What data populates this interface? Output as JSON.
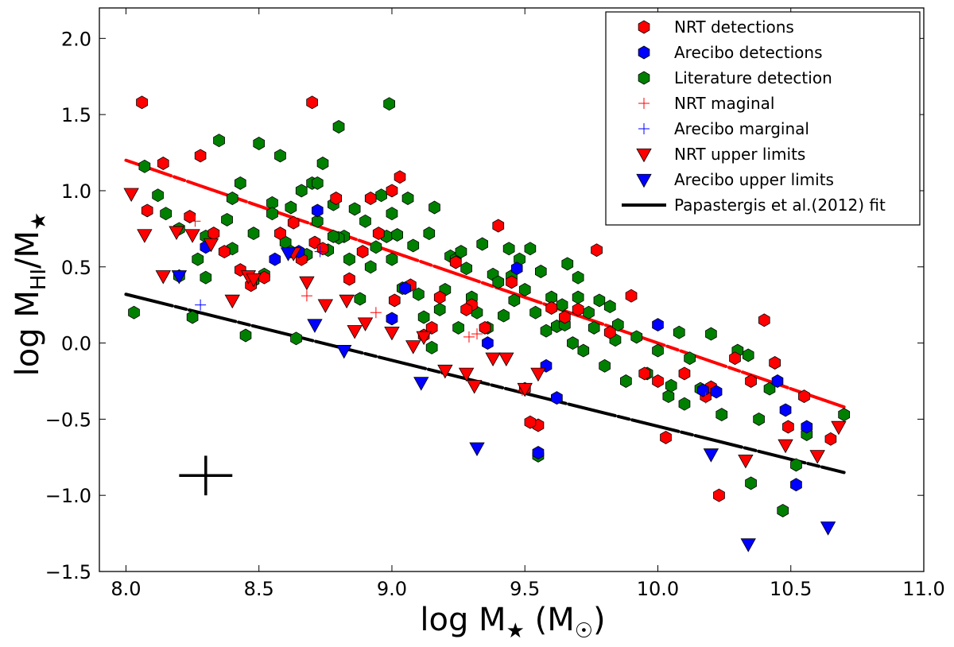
{
  "chart_data": {
    "type": "scatter",
    "title": "",
    "xlabel": {
      "main": "log M",
      "sub": "★",
      "unit_open": " (M",
      "unit_sub": "☉",
      "unit_close": ")"
    },
    "ylabel": {
      "main": "log M",
      "sub": "HI",
      "slash": "/M",
      "sub2": "★"
    },
    "xlim": [
      7.9,
      11.0
    ],
    "ylim": [
      -1.5,
      2.2
    ],
    "x_ticks": [
      "8.0",
      "8.5",
      "9.0",
      "9.5",
      "10.0",
      "10.5",
      "11.0"
    ],
    "y_ticks": [
      "2.0",
      "1.5",
      "1.0",
      "0.5",
      "0.0",
      "−0.5",
      "−1.0",
      "−1.5"
    ],
    "x_tick_values": [
      8.0,
      8.5,
      9.0,
      9.5,
      10.0,
      10.5,
      11.0
    ],
    "y_tick_values": [
      2.0,
      1.5,
      1.0,
      0.5,
      0.0,
      -0.5,
      -1.0,
      -1.5
    ],
    "grid": false,
    "legend_position": "top-right",
    "colors": {
      "nrt": "#ff0000",
      "arecibo": "#0000ff",
      "literature": "#008000",
      "fit_black": "#000000",
      "fit_red": "#ff0000"
    },
    "error_bar": {
      "x": 8.3,
      "y": -0.87,
      "dx": 0.1,
      "dy": 0.13
    },
    "legend": [
      {
        "label": "NRT detections",
        "marker": "hexagon",
        "color": "#ff0000"
      },
      {
        "label": "Arecibo detections",
        "marker": "hexagon",
        "color": "#0000ff"
      },
      {
        "label": "Literature detection",
        "marker": "hexagon",
        "color": "#008000"
      },
      {
        "label": "NRT maginal",
        "marker": "plus",
        "color": "#ff0000"
      },
      {
        "label": "Arecibo marginal",
        "marker": "plus",
        "color": "#0000ff"
      },
      {
        "label": "NRT upper limits",
        "marker": "triangle-down",
        "color": "#ff0000"
      },
      {
        "label": "Arecibo upper limits",
        "marker": "triangle-down",
        "color": "#0000ff"
      },
      {
        "label": "Papastergis et al.(2012) fit",
        "marker": "line",
        "color": "#000000"
      }
    ],
    "fits": [
      {
        "name": "Papastergis et al.(2012) fit",
        "color": "#000000",
        "x": [
          8.0,
          10.7
        ],
        "y": [
          0.32,
          -0.85
        ]
      },
      {
        "name": "",
        "color": "#ff0000",
        "x": [
          8.0,
          10.7
        ],
        "y": [
          1.2,
          -0.42
        ]
      }
    ],
    "series": [
      {
        "name": "Literature detection",
        "marker": "hexagon",
        "color": "#008000",
        "x": [
          8.03,
          8.07,
          8.12,
          8.15,
          8.2,
          8.25,
          8.27,
          8.3,
          8.35,
          8.38,
          8.4,
          8.43,
          8.45,
          8.48,
          8.5,
          8.52,
          8.55,
          8.58,
          8.6,
          8.62,
          8.64,
          8.66,
          8.68,
          8.7,
          8.72,
          8.74,
          8.76,
          8.78,
          8.8,
          8.82,
          8.84,
          8.86,
          8.88,
          8.9,
          8.92,
          8.94,
          8.96,
          8.98,
          9.0,
          9.02,
          9.04,
          9.06,
          9.08,
          9.1,
          9.12,
          9.14,
          9.16,
          9.18,
          9.2,
          9.22,
          9.24,
          9.26,
          9.28,
          9.3,
          9.32,
          9.34,
          9.36,
          9.38,
          9.4,
          9.42,
          9.44,
          9.46,
          9.48,
          9.5,
          9.52,
          9.54,
          9.56,
          9.58,
          9.6,
          9.62,
          9.64,
          9.66,
          9.68,
          9.7,
          9.72,
          9.74,
          9.76,
          9.78,
          9.8,
          9.82,
          9.84,
          9.88,
          9.92,
          9.96,
          10.0,
          10.04,
          10.08,
          10.12,
          10.16,
          10.2,
          10.24,
          10.3,
          10.34,
          10.38,
          10.42,
          10.47,
          10.52,
          10.56,
          10.7,
          8.4,
          8.55,
          8.99,
          8.8,
          9.55,
          10.1,
          8.48,
          8.72,
          9.0,
          9.45,
          9.65,
          8.3,
          8.62,
          9.25,
          9.85,
          10.05,
          8.2,
          8.78,
          9.15,
          9.7,
          10.35
        ],
        "y": [
          0.2,
          1.16,
          0.97,
          0.85,
          0.75,
          0.17,
          0.55,
          0.7,
          1.33,
          0.81,
          0.95,
          1.05,
          0.05,
          0.72,
          1.31,
          0.45,
          0.92,
          1.23,
          0.66,
          0.89,
          0.03,
          1.0,
          0.58,
          1.05,
          0.8,
          1.18,
          0.61,
          0.91,
          1.42,
          0.7,
          0.55,
          0.88,
          0.29,
          0.8,
          0.5,
          0.63,
          0.97,
          0.7,
          0.85,
          0.71,
          0.36,
          0.95,
          0.64,
          0.32,
          0.17,
          0.72,
          0.89,
          0.22,
          0.35,
          0.57,
          0.55,
          0.6,
          0.49,
          0.3,
          0.2,
          0.65,
          0.1,
          0.45,
          0.4,
          0.18,
          0.62,
          0.28,
          0.55,
          0.35,
          0.62,
          0.2,
          0.47,
          0.08,
          0.3,
          0.11,
          0.25,
          0.52,
          0.0,
          0.43,
          -0.05,
          0.2,
          0.1,
          0.28,
          -0.15,
          0.24,
          0.02,
          -0.25,
          0.04,
          -0.2,
          -0.05,
          -0.35,
          0.07,
          -0.1,
          -0.3,
          0.06,
          -0.47,
          -0.05,
          -0.08,
          -0.5,
          -0.3,
          -1.1,
          -0.8,
          -0.6,
          -0.47,
          0.62,
          0.85,
          1.57,
          0.69,
          -0.74,
          -0.4,
          0.41,
          1.05,
          0.55,
          0.44,
          0.12,
          0.43,
          0.6,
          0.1,
          0.12,
          -0.28,
          0.44,
          0.7,
          -0.03,
          0.3,
          -0.92
        ],
        "r": 8
      },
      {
        "name": "NRT detections",
        "marker": "hexagon",
        "color": "#ff0000",
        "x": [
          8.06,
          8.08,
          8.14,
          8.24,
          8.28,
          8.33,
          8.37,
          8.43,
          8.47,
          8.52,
          8.58,
          8.63,
          8.66,
          8.7,
          8.71,
          8.74,
          8.79,
          8.84,
          8.89,
          8.95,
          9.0,
          9.01,
          9.03,
          9.07,
          9.12,
          9.18,
          9.24,
          9.3,
          9.35,
          9.4,
          9.45,
          9.5,
          9.55,
          9.6,
          9.65,
          9.7,
          9.77,
          9.82,
          9.9,
          9.95,
          10.0,
          10.03,
          10.1,
          10.18,
          10.23,
          10.29,
          10.35,
          10.4,
          10.44,
          10.49,
          10.55,
          10.65,
          9.28,
          8.92,
          9.15,
          9.52,
          10.2
        ],
        "y": [
          1.58,
          0.87,
          1.18,
          0.83,
          1.23,
          0.72,
          0.6,
          0.48,
          0.38,
          0.43,
          0.72,
          0.79,
          0.55,
          1.58,
          0.66,
          0.62,
          0.95,
          0.42,
          0.6,
          0.72,
          1.0,
          0.28,
          1.09,
          0.38,
          0.05,
          0.3,
          0.53,
          0.25,
          0.1,
          0.77,
          0.4,
          -0.3,
          -0.54,
          0.23,
          0.17,
          0.22,
          0.61,
          0.07,
          0.31,
          -0.2,
          -0.25,
          -0.62,
          -0.2,
          -0.35,
          -1.0,
          -0.1,
          -0.25,
          0.15,
          -0.13,
          -0.55,
          -0.35,
          -0.63,
          0.22,
          0.95,
          0.1,
          -0.52,
          -0.29
        ],
        "r": 8
      },
      {
        "name": "Arecibo detections",
        "marker": "hexagon",
        "color": "#0000ff",
        "x": [
          8.3,
          8.56,
          8.65,
          8.72,
          9.0,
          9.05,
          9.36,
          9.47,
          9.55,
          9.58,
          9.62,
          10.0,
          10.17,
          10.22,
          10.45,
          10.48,
          10.52,
          10.56
        ],
        "y": [
          0.63,
          0.55,
          0.6,
          0.87,
          0.16,
          0.36,
          0.0,
          0.49,
          -0.72,
          -0.15,
          -0.36,
          0.12,
          -0.31,
          -0.32,
          -0.25,
          -0.44,
          -0.93,
          -0.55
        ],
        "r": 8
      },
      {
        "name": "NRT maginal",
        "marker": "plus",
        "color": "#ff0000",
        "x": [
          8.26,
          8.68,
          8.94,
          9.29,
          9.32,
          9.49,
          10.18
        ],
        "y": [
          0.8,
          0.31,
          0.2,
          0.04,
          0.06,
          -0.31,
          -0.36
        ]
      },
      {
        "name": "Arecibo marginal",
        "marker": "plus",
        "color": "#0000ff",
        "x": [
          8.28,
          8.73
        ],
        "y": [
          0.25,
          0.6
        ]
      },
      {
        "name": "NRT upper limits",
        "marker": "triangle-down",
        "color": "#ff0000",
        "x": [
          8.02,
          8.07,
          8.14,
          8.19,
          8.25,
          8.32,
          8.4,
          8.46,
          8.48,
          8.63,
          8.68,
          8.75,
          8.83,
          8.86,
          8.9,
          9.0,
          9.08,
          9.12,
          9.2,
          9.28,
          9.31,
          9.38,
          9.43,
          9.5,
          9.55,
          10.33,
          10.48,
          10.6,
          10.68
        ],
        "y": [
          0.98,
          0.71,
          0.44,
          0.73,
          0.71,
          0.65,
          0.28,
          0.44,
          0.42,
          0.59,
          0.4,
          0.25,
          0.28,
          0.08,
          0.13,
          0.07,
          -0.02,
          0.04,
          -0.18,
          -0.2,
          -0.28,
          -0.1,
          -0.1,
          -0.3,
          -0.2,
          -0.77,
          -0.67,
          -0.74,
          -0.55
        ],
        "r": 9
      },
      {
        "name": "Arecibo upper limits",
        "marker": "triangle-down",
        "color": "#0000ff",
        "x": [
          8.2,
          8.61,
          8.71,
          8.82,
          9.11,
          9.32,
          10.2,
          10.34,
          10.64
        ],
        "y": [
          0.44,
          0.59,
          0.12,
          -0.05,
          -0.26,
          -0.69,
          -0.73,
          -1.32,
          -1.21
        ],
        "r": 9
      }
    ]
  }
}
